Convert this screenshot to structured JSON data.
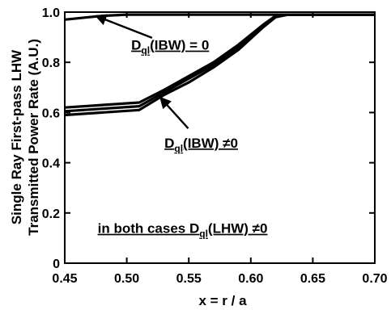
{
  "chart_data": {
    "type": "line",
    "title": "",
    "xlabel": "x = r / a",
    "ylabel_line1": "Single Ray First-pass LHW",
    "ylabel_line2": "Transmitted Power Rate (A.U.)",
    "xlim": [
      0.45,
      0.7
    ],
    "ylim": [
      0,
      1.0
    ],
    "xticks": [
      0.45,
      0.5,
      0.55,
      0.6,
      0.65,
      0.7
    ],
    "xtick_labels": [
      "0.45",
      "0.50",
      "0.55",
      "0.60",
      "0.65",
      "0.70"
    ],
    "yticks": [
      0,
      0.2,
      0.4,
      0.6,
      0.8,
      1.0
    ],
    "ytick_labels": [
      "0",
      "0.2",
      "0.4",
      "0.6",
      "0.8",
      "1.0"
    ],
    "grid": false,
    "series": [
      {
        "x": [
          0.45,
          0.47,
          0.48,
          0.5,
          0.55,
          0.6,
          0.62,
          0.7
        ],
        "y": [
          0.97,
          0.98,
          0.985,
          0.99,
          0.99,
          0.99,
          0.99,
          0.99
        ]
      },
      {
        "x": [
          0.45,
          0.48,
          0.51,
          0.53,
          0.55,
          0.57,
          0.59,
          0.61,
          0.62,
          0.63,
          0.7
        ],
        "y": [
          0.59,
          0.6,
          0.61,
          0.67,
          0.72,
          0.78,
          0.85,
          0.94,
          0.98,
          0.99,
          0.99
        ]
      },
      {
        "x": [
          0.45,
          0.48,
          0.51,
          0.53,
          0.55,
          0.57,
          0.59,
          0.61,
          0.62,
          0.63,
          0.7
        ],
        "y": [
          0.605,
          0.615,
          0.625,
          0.68,
          0.735,
          0.79,
          0.86,
          0.945,
          0.98,
          0.99,
          0.99
        ]
      },
      {
        "x": [
          0.45,
          0.48,
          0.51,
          0.53,
          0.55,
          0.57,
          0.59,
          0.61,
          0.62,
          0.63,
          0.7
        ],
        "y": [
          0.62,
          0.63,
          0.64,
          0.69,
          0.745,
          0.8,
          0.87,
          0.95,
          0.985,
          0.99,
          0.99
        ]
      }
    ],
    "annotations": [
      {
        "text_main": "D",
        "text_sub": "ql",
        "text_rest": "(IBW) = 0",
        "target": {
          "x": 0.475,
          "y": 0.985
        },
        "label_at": {
          "x": 0.535,
          "y": 0.85
        }
      },
      {
        "text_main": "D",
        "text_sub": "ql",
        "text_rest": "(IBW) ≠0",
        "target": {
          "x": 0.527,
          "y": 0.66
        },
        "label_at": {
          "x": 0.56,
          "y": 0.46
        }
      },
      {
        "text_main": "in both cases D",
        "text_sub": "ql",
        "text_rest": "(LHW) ≠0",
        "label_at": {
          "x": 0.545,
          "y": 0.12
        }
      }
    ]
  }
}
